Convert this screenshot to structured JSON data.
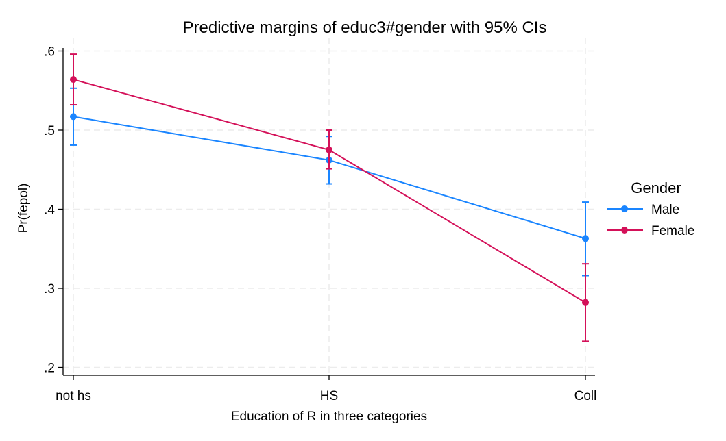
{
  "chart_data": {
    "type": "line",
    "title": "Predictive margins of educ3#gender with 95% CIs",
    "xlabel": "Education of R in three categories",
    "ylabel": "Pr(fepol)",
    "categories": [
      "not hs",
      "HS",
      "Coll"
    ],
    "ylim": [
      0.2,
      0.6
    ],
    "yticks": [
      0.2,
      0.3,
      0.4,
      0.5,
      0.6
    ],
    "ytick_labels": [
      ".2",
      ".3",
      ".4",
      ".5",
      ".6"
    ],
    "grid": true,
    "legend": {
      "title": "Gender",
      "placement": "right"
    },
    "series": [
      {
        "name": "Male",
        "color": "#1a85ff",
        "values": [
          0.517,
          0.462,
          0.363
        ],
        "ci_low": [
          0.481,
          0.432,
          0.316
        ],
        "ci_high": [
          0.553,
          0.492,
          0.409
        ]
      },
      {
        "name": "Female",
        "color": "#d41159",
        "values": [
          0.564,
          0.475,
          0.282
        ],
        "ci_low": [
          0.532,
          0.451,
          0.233
        ],
        "ci_high": [
          0.596,
          0.5,
          0.331
        ]
      }
    ]
  }
}
